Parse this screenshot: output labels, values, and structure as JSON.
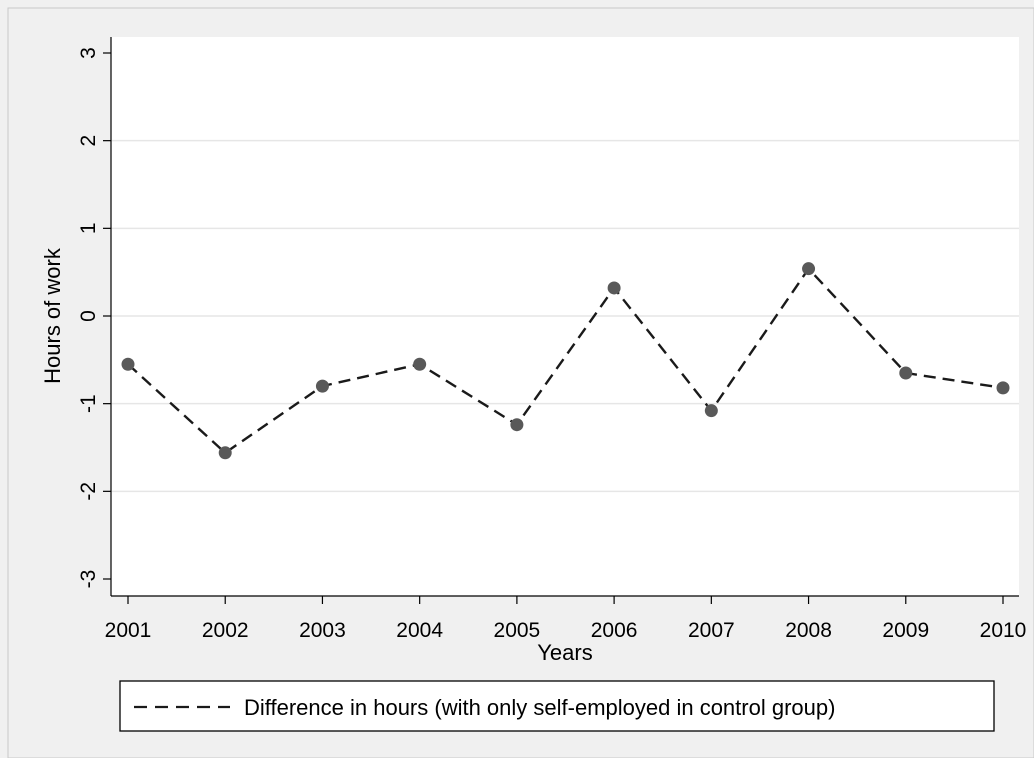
{
  "chart_data": {
    "type": "line",
    "title": "",
    "xlabel": "Years",
    "ylabel": "Hours of work",
    "x": [
      2001,
      2002,
      2003,
      2004,
      2005,
      2006,
      2007,
      2008,
      2009,
      2010
    ],
    "x_ticks": [
      "2001",
      "2002",
      "2003",
      "2004",
      "2005",
      "2006",
      "2007",
      "2008",
      "2009",
      "2010"
    ],
    "y_ticks": [
      "3",
      "2",
      "1",
      "0",
      "-1",
      "-2",
      "-3"
    ],
    "ylim": [
      -3,
      3
    ],
    "grid": true,
    "legend_position": "bottom",
    "series": [
      {
        "name": "Difference in hours (with only self-employed in control group)",
        "values": [
          -0.55,
          -1.56,
          -0.8,
          -0.55,
          -1.24,
          0.32,
          -1.08,
          0.54,
          -0.65,
          -0.82
        ],
        "line_style": "dashed",
        "line_color": "#1a1a1a",
        "marker_color": "#595959"
      }
    ],
    "colors": {
      "outer_background": "#f0f0f0",
      "plot_background": "#ffffff",
      "grid": "#e6e6e6"
    }
  }
}
